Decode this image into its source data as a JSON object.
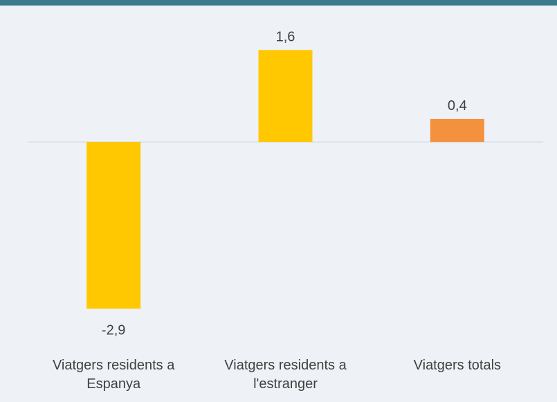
{
  "chart_data": {
    "type": "bar",
    "categories": [
      "Viatgers residents a Espanya",
      "Viatgers residents a l'estranger",
      "Viatgers totals"
    ],
    "values": [
      -2.9,
      1.6,
      0.4
    ],
    "value_labels": [
      "-2,9",
      "1,6",
      "0,4"
    ],
    "colors": [
      "#ffc800",
      "#ffc800",
      "#f4913f"
    ],
    "ylim": [
      -3.2,
      2.0
    ]
  }
}
